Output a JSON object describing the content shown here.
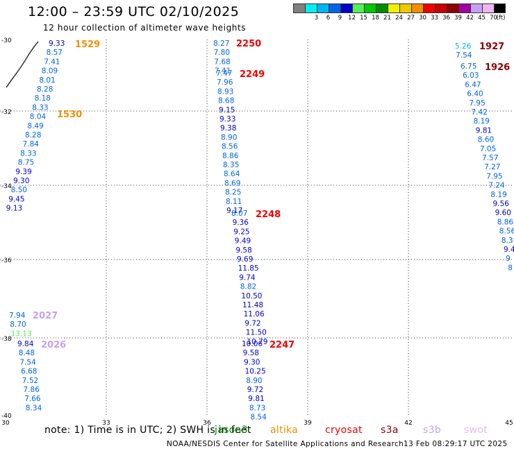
{
  "header": {
    "title": "12:00 – 23:59 UTC 02/10/2025",
    "subtitle": "12 hour collection of altimeter wave heights"
  },
  "colorbar": {
    "unit": "(ft)",
    "bins": [
      {
        "color": "#808080",
        "label": ""
      },
      {
        "color": "#00f0f0",
        "label": "3"
      },
      {
        "color": "#00b4f0",
        "label": "6"
      },
      {
        "color": "#0064e6",
        "label": "9"
      },
      {
        "color": "#0000c8",
        "label": "12"
      },
      {
        "color": "#55ee55",
        "label": "15"
      },
      {
        "color": "#00c800",
        "label": "18"
      },
      {
        "color": "#008c00",
        "label": "21"
      },
      {
        "color": "#f0f000",
        "label": "24"
      },
      {
        "color": "#f0c800",
        "label": "27"
      },
      {
        "color": "#f09000",
        "label": "30"
      },
      {
        "color": "#f00000",
        "label": "33"
      },
      {
        "color": "#c80000",
        "label": "36"
      },
      {
        "color": "#8c0000",
        "label": "39"
      },
      {
        "color": "#a000a0",
        "label": "42"
      },
      {
        "color": "#c8a0f0",
        "label": "45"
      },
      {
        "color": "#f0b4f0",
        "label": "70"
      },
      {
        "color": "#000000",
        "label": ""
      }
    ]
  },
  "axes": {
    "lon_ticks": [
      "30",
      "33",
      "36",
      "39",
      "42",
      "45"
    ],
    "lat_ticks": [
      "-30",
      "-32",
      "-34",
      "-36",
      "-38",
      "-40"
    ]
  },
  "tracks": [
    {
      "time": "1529",
      "time_color": "#f09000",
      "values": [
        "9.33",
        "8.57",
        "7.41",
        "8.09",
        "8.01",
        "8.28",
        "8.18",
        "8.33",
        "8.04",
        "8.49",
        "8.28",
        "7.84",
        "8.33",
        "8.75",
        "9.39",
        "9.30",
        "8.50",
        "9.45",
        "9.13"
      ]
    },
    {
      "time": "1530",
      "time_color": "#f09000",
      "values": []
    },
    {
      "time": "2250",
      "time_color": "#f00000",
      "values": [
        "8.27",
        "7.80",
        "7.68",
        "7.41"
      ]
    },
    {
      "time": "2249",
      "time_color": "#f00000",
      "values": [
        "7.47",
        "7.96",
        "8.93",
        "8.68",
        "9.15",
        "9.33",
        "9.38",
        "8.90",
        "8.56",
        "8.86",
        "8.35",
        "8.64",
        "8.69",
        "8.25",
        "8.11",
        "9.17"
      ]
    },
    {
      "time": "2248",
      "time_color": "#f00000",
      "values": [
        "8.07",
        "9.36",
        "9.25",
        "9.49",
        "9.58",
        "9.69",
        "11.85",
        "9.74",
        "8.82",
        "10.50",
        "11.48",
        "11.06",
        "9.72",
        "11.50",
        "10.79"
      ]
    },
    {
      "time": "2247",
      "time_color": "#f00000",
      "values": [
        "10.06",
        "9.58",
        "9.30",
        "10.25",
        "8.90",
        "9.72",
        "9.81",
        "8.73",
        "8.54"
      ]
    },
    {
      "time": "1927",
      "time_color": "#8c0000",
      "values": [
        "5.26",
        "7.54"
      ]
    },
    {
      "time": "1926",
      "time_color": "#8c0000",
      "values": [
        "6.75",
        "6.03",
        "6.47",
        "6.40",
        "7.95",
        "7.42",
        "8.19",
        "9.81",
        "8.60",
        "7.05",
        "7.57",
        "7.27",
        "7.95",
        "7.24",
        "8.19",
        "9.56",
        "9.60",
        "8.86",
        "8.56",
        "8.3",
        "9.4",
        "9",
        "8"
      ]
    },
    {
      "time": "2027",
      "time_color": "#c8a0f0",
      "values": [
        "7.94",
        "8.70",
        "13.13"
      ]
    },
    {
      "time": "2026",
      "time_color": "#c8a0f0",
      "values": [
        "9.84",
        "8.48",
        "7.54",
        "6.68",
        "7.52",
        "7.86",
        "7.66",
        "8.34"
      ]
    }
  ],
  "footer": {
    "note": "note:  1) Time is in UTC; 2) SWH is in feet",
    "satellites": [
      {
        "name": "jason3",
        "color": "#008c00"
      },
      {
        "name": "altika",
        "color": "#f09000"
      },
      {
        "name": "cryosat",
        "color": "#f00000"
      },
      {
        "name": "s3a",
        "color": "#8c0000"
      },
      {
        "name": "s3b",
        "color": "#c8a0f0"
      },
      {
        "name": "swot",
        "color": "#f0b4f0"
      }
    ],
    "credit": "NOAA/NESDIS Center for Satellite Applications and Research",
    "generated": "13 Feb 08:29:17 UTC 2025"
  }
}
